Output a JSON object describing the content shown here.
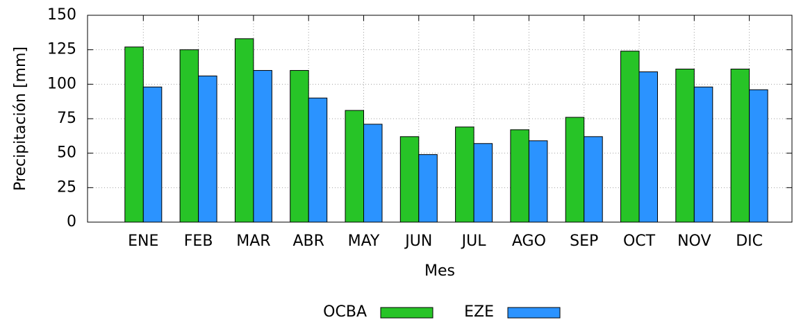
{
  "chart_data": {
    "type": "bar",
    "x_label": "Mes",
    "y_label": "Precipitación [mm]",
    "categories": [
      "ENE",
      "FEB",
      "MAR",
      "ABR",
      "MAY",
      "JUN",
      "JUL",
      "AGO",
      "SEP",
      "OCT",
      "NOV",
      "DIC"
    ],
    "series": [
      {
        "name": "OCBA",
        "color": "#27c427",
        "values": [
          127,
          125,
          133,
          110,
          81,
          62,
          69,
          67,
          76,
          124,
          111,
          111
        ]
      },
      {
        "name": "EZE",
        "color": "#2b93ff",
        "values": [
          98,
          106,
          110,
          90,
          71,
          49,
          57,
          59,
          62,
          109,
          98,
          96
        ]
      }
    ],
    "ylim": [
      0,
      150
    ],
    "yticks": [
      0,
      25,
      50,
      75,
      100,
      125,
      150
    ],
    "grid": true,
    "legend": "bottom"
  }
}
